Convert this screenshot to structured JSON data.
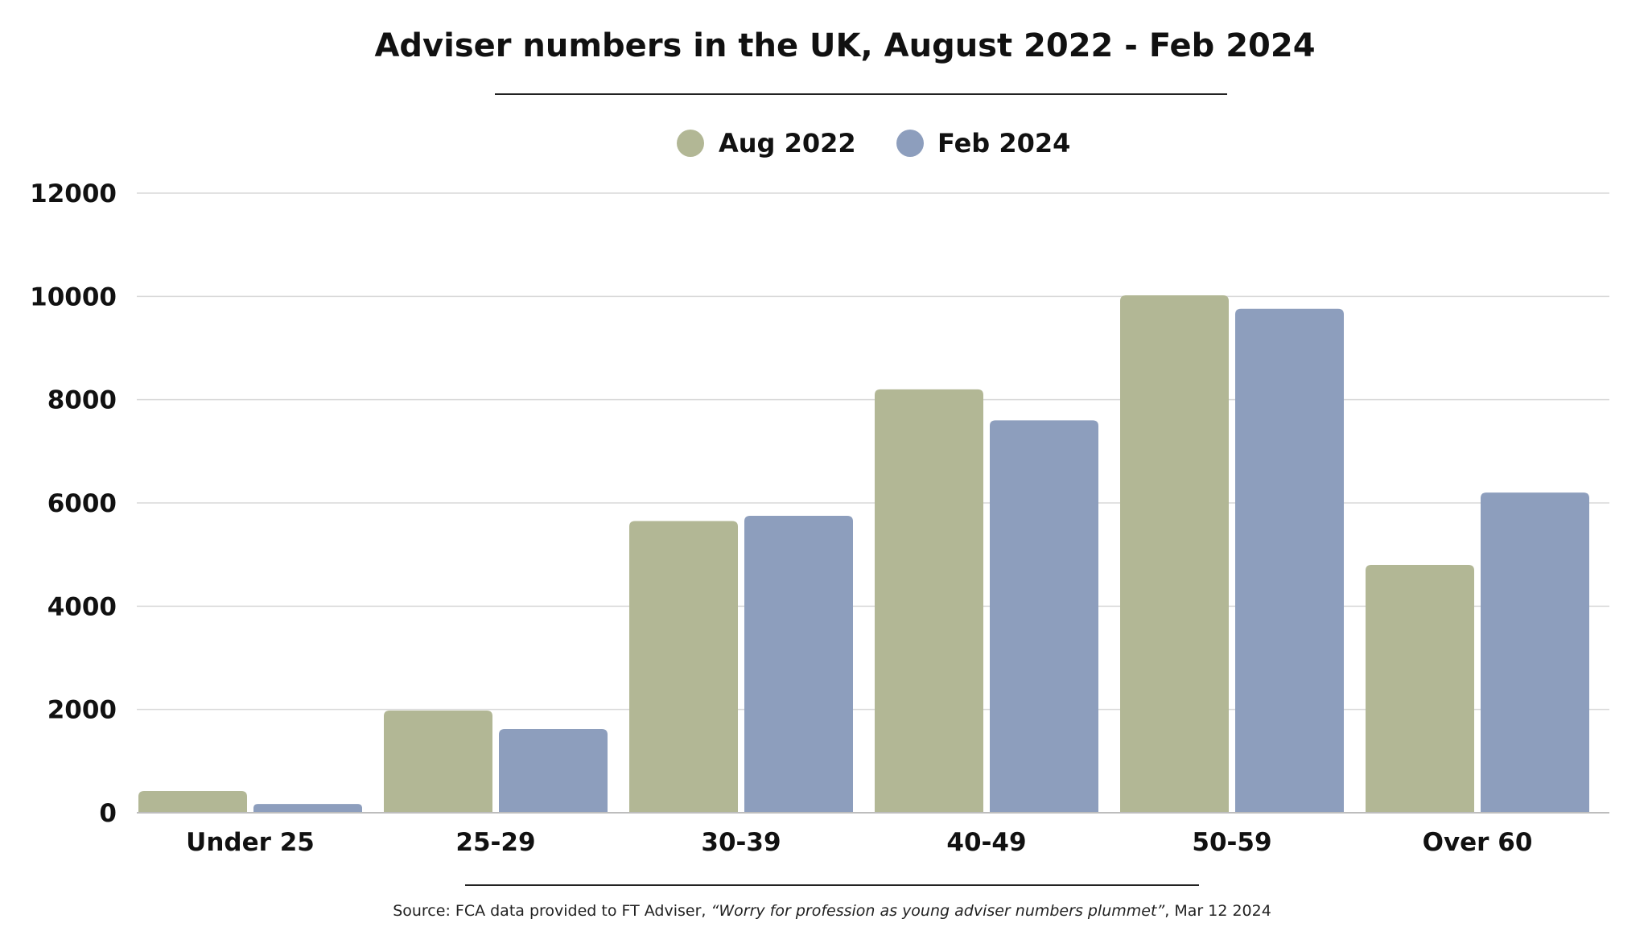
{
  "chart_data": {
    "type": "bar",
    "title": "Adviser numbers in the UK, August 2022 - Feb 2024",
    "categories": [
      "Under 25",
      "25-29",
      "30-39",
      "40-49",
      "50-59",
      "Over 60"
    ],
    "series": [
      {
        "name": "Aug 2022",
        "color": "#b2b795",
        "values": [
          420,
          1980,
          5650,
          8200,
          10020,
          4800
        ]
      },
      {
        "name": "Feb 2024",
        "color": "#8d9ebd",
        "values": [
          170,
          1620,
          5750,
          7600,
          9760,
          6200
        ]
      }
    ],
    "xlabel": "",
    "ylabel": "",
    "ylim": [
      0,
      12000
    ],
    "yticks": [
      "0",
      "2000",
      "4000",
      "6000",
      "8000",
      "10000",
      "12000"
    ],
    "grid": true,
    "legend_position": "top-center"
  },
  "source": {
    "prefix": "Source: FCA data provided to FT Adviser, ",
    "article": "“Worry for profession as young adviser numbers plummet”",
    "suffix": ", Mar 12 2024"
  }
}
